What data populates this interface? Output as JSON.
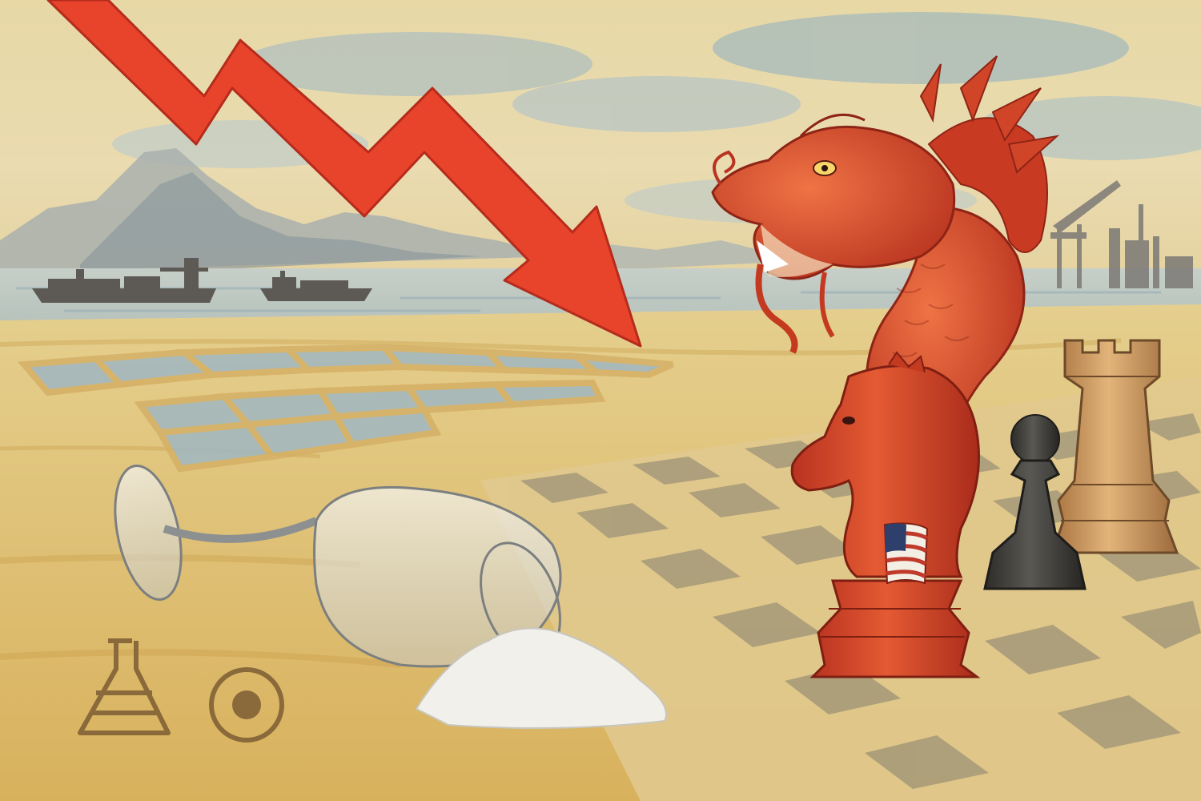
{
  "scene": {
    "description_free": true,
    "palette": {
      "paper": "#e8d39a",
      "sky_blue": "#8fb2c8",
      "sand": "#d9b766",
      "arrow_red": "#e8442c",
      "dragon_red": "#d9472b",
      "dark_piece": "#3c3a36",
      "wood_piece": "#c9965a",
      "water": "#9fb7c2",
      "mountain": "#a9b2b4",
      "ship": "#5d5a55",
      "salt": "#f1f0ea"
    },
    "icons": {
      "arrow": "down-trend-arrow",
      "dragon": "dragon-head",
      "knight": "knight-chess-piece",
      "pawn": "pawn-chess-piece",
      "rook": "rook-chess-piece",
      "glass": "tipped-wine-glass",
      "flag": "us-flag-emblem",
      "flask": "flask-icon",
      "target": "circle-target-icon",
      "ships": "cargo-ship",
      "port": "port-crane"
    }
  }
}
